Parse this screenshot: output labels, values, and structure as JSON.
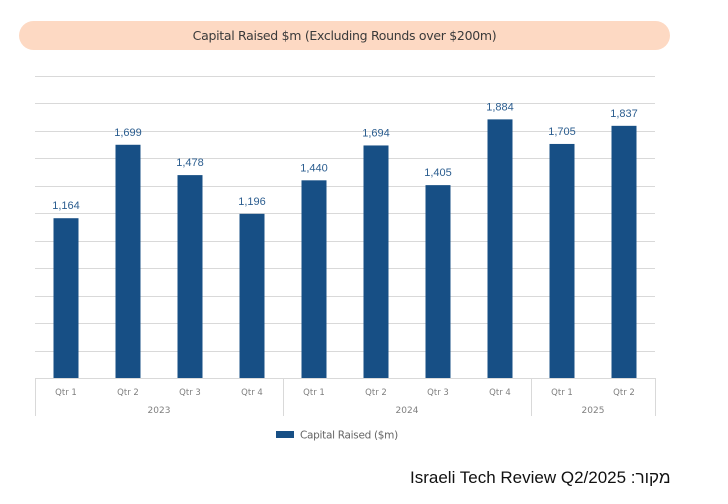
{
  "chart_data": {
    "type": "bar",
    "title": "Capital Raised $m (Excluding Rounds over $200m)",
    "xlabel": "",
    "ylabel": "",
    "categories": [
      "Qtr 1",
      "Qtr 2",
      "Qtr 3",
      "Qtr 4",
      "Qtr 1",
      "Qtr 2",
      "Qtr 3",
      "Qtr 4",
      "Qtr 1",
      "Qtr 2"
    ],
    "groups": [
      {
        "label": "2023",
        "count": 4
      },
      {
        "label": "2024",
        "count": 4
      },
      {
        "label": "2025",
        "count": 2
      }
    ],
    "series": [
      {
        "name": "Capital Raised ($m)",
        "color": "#174f85",
        "values": [
          1164,
          1699,
          1478,
          1196,
          1440,
          1694,
          1405,
          1884,
          1705,
          1837
        ],
        "labels": [
          "1,164",
          "1,699",
          "1,478",
          "1,196",
          "1,440",
          "1,694",
          "1,405",
          "1,884",
          "1,705",
          "1,837"
        ]
      }
    ],
    "ylim": [
      0,
      2200
    ],
    "grid_step": 200,
    "grid": true,
    "y_tick_labels_visible": false,
    "legend": {
      "position": "bottom",
      "entries": [
        "Capital Raised ($m)"
      ]
    }
  },
  "colors": {
    "bar": "#174f85",
    "data_label": "#2b5d8f",
    "title_bg": "#fdd9c3",
    "grid": "#d9d9d9",
    "axis_text": "#7f7f7f"
  },
  "footer": {
    "source_text": "Israeli Tech Review Q2/2025 :מקור"
  }
}
